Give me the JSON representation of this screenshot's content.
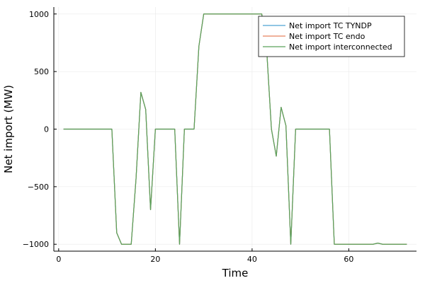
{
  "chart_data": {
    "type": "line",
    "xlabel": "Time",
    "ylabel": "Net import (MW)",
    "xlim": [
      -1,
      74
    ],
    "ylim": [
      -1060,
      1060
    ],
    "xticks": [
      0,
      20,
      40,
      60
    ],
    "yticks": [
      -1000,
      -500,
      0,
      500,
      1000
    ],
    "xtick_labels": [
      "0",
      "20",
      "40",
      "60"
    ],
    "ytick_labels": [
      "−1000",
      "−500",
      "0",
      "500",
      "1000"
    ],
    "grid": true,
    "legend_position": "top-right",
    "series": [
      {
        "name": "Net import TC TYNDP",
        "color": "#4da3d4",
        "x": [
          1,
          2,
          3,
          4,
          5,
          6,
          7,
          8,
          9,
          10,
          11,
          12,
          13,
          14,
          15,
          16,
          17,
          18,
          19,
          20,
          21,
          22,
          23,
          24,
          25,
          26,
          27,
          28,
          29,
          30,
          31,
          32,
          33,
          34,
          35,
          36,
          37,
          38,
          39,
          40,
          41,
          42,
          43,
          44,
          45,
          46,
          47,
          48,
          49,
          50,
          51,
          52,
          53,
          54,
          55,
          56,
          57,
          58,
          59,
          60,
          61,
          62,
          63,
          64,
          65,
          66,
          67,
          68,
          69,
          70,
          71,
          72
        ],
        "y": [
          0,
          0,
          0,
          0,
          0,
          0,
          0,
          0,
          0,
          0,
          0,
          -900,
          -1000,
          -1000,
          -1000,
          -430,
          320,
          170,
          -700,
          0,
          0,
          0,
          0,
          0,
          -1000,
          0,
          0,
          0,
          720,
          1000,
          1000,
          1000,
          1000,
          1000,
          1000,
          1000,
          1000,
          1000,
          1000,
          1000,
          1000,
          1000,
          700,
          0,
          -235,
          190,
          30,
          -1000,
          0,
          0,
          0,
          0,
          0,
          0,
          0,
          0,
          -1000,
          -1000,
          -1000,
          -1000,
          -1000,
          -1000,
          -1000,
          -1000,
          -1000,
          -990,
          -1000,
          -1000,
          -1000,
          -1000,
          -1000,
          -1000
        ]
      },
      {
        "name": "Net import TC endo",
        "color": "#e8825e",
        "x": [
          1,
          2,
          3,
          4,
          5,
          6,
          7,
          8,
          9,
          10,
          11,
          12,
          13,
          14,
          15,
          16,
          17,
          18,
          19,
          20,
          21,
          22,
          23,
          24,
          25,
          26,
          27,
          28,
          29,
          30,
          31,
          32,
          33,
          34,
          35,
          36,
          37,
          38,
          39,
          40,
          41,
          42,
          43,
          44,
          45,
          46,
          47,
          48,
          49,
          50,
          51,
          52,
          53,
          54,
          55,
          56,
          57,
          58,
          59,
          60,
          61,
          62,
          63,
          64,
          65,
          66,
          67,
          68,
          69,
          70,
          71,
          72
        ],
        "y": [
          0,
          0,
          0,
          0,
          0,
          0,
          0,
          0,
          0,
          0,
          0,
          -900,
          -1000,
          -1000,
          -1000,
          -430,
          320,
          170,
          -700,
          0,
          0,
          0,
          0,
          0,
          -1000,
          0,
          0,
          0,
          720,
          1000,
          1000,
          1000,
          1000,
          1000,
          1000,
          1000,
          1000,
          1000,
          1000,
          1000,
          1000,
          1000,
          700,
          0,
          -235,
          190,
          30,
          -1000,
          0,
          0,
          0,
          0,
          0,
          0,
          0,
          0,
          -1000,
          -1000,
          -1000,
          -1000,
          -1000,
          -1000,
          -1000,
          -1000,
          -1000,
          -990,
          -1000,
          -1000,
          -1000,
          -1000,
          -1000,
          -1000
        ]
      },
      {
        "name": "Net import interconnected",
        "color": "#5aa25a",
        "x": [
          1,
          2,
          3,
          4,
          5,
          6,
          7,
          8,
          9,
          10,
          11,
          12,
          13,
          14,
          15,
          16,
          17,
          18,
          19,
          20,
          21,
          22,
          23,
          24,
          25,
          26,
          27,
          28,
          29,
          30,
          31,
          32,
          33,
          34,
          35,
          36,
          37,
          38,
          39,
          40,
          41,
          42,
          43,
          44,
          45,
          46,
          47,
          48,
          49,
          50,
          51,
          52,
          53,
          54,
          55,
          56,
          57,
          58,
          59,
          60,
          61,
          62,
          63,
          64,
          65,
          66,
          67,
          68,
          69,
          70,
          71,
          72
        ],
        "y": [
          0,
          0,
          0,
          0,
          0,
          0,
          0,
          0,
          0,
          0,
          0,
          -900,
          -1000,
          -1000,
          -1000,
          -430,
          320,
          170,
          -700,
          0,
          0,
          0,
          0,
          0,
          -1000,
          0,
          0,
          0,
          720,
          1000,
          1000,
          1000,
          1000,
          1000,
          1000,
          1000,
          1000,
          1000,
          1000,
          1000,
          1000,
          1000,
          700,
          0,
          -235,
          190,
          30,
          -1000,
          0,
          0,
          0,
          0,
          0,
          0,
          0,
          0,
          -1000,
          -1000,
          -1000,
          -1000,
          -1000,
          -1000,
          -1000,
          -1000,
          -1000,
          -990,
          -1000,
          -1000,
          -1000,
          -1000,
          -1000,
          -1000
        ]
      }
    ]
  }
}
